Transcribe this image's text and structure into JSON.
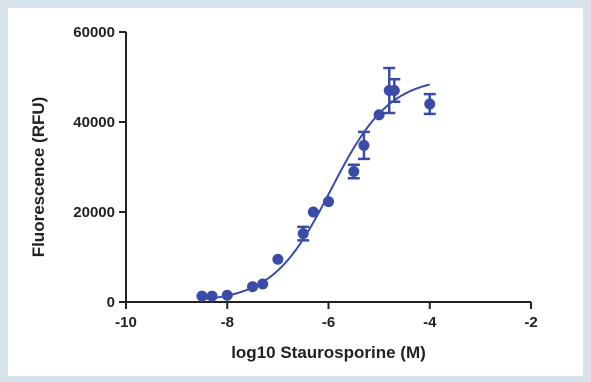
{
  "chart_data": {
    "type": "scatter",
    "title": "",
    "xlabel": "log10 Staurosporine (M)",
    "ylabel": "Fluorescence (RFU)",
    "xlim": [
      -10,
      -2
    ],
    "ylim": [
      0,
      60000
    ],
    "x_ticks": [
      -10,
      -8,
      -6,
      -4,
      -2
    ],
    "y_ticks": [
      0,
      20000,
      40000,
      60000
    ],
    "x_tick_labels": [
      "-10",
      "-8",
      "-6",
      "-4",
      "-2"
    ],
    "y_tick_labels": [
      "0",
      "20000",
      "40000",
      "60000"
    ],
    "grid": false,
    "legend": "none",
    "color": "#3b4ca8",
    "points": [
      {
        "x": -8.5,
        "y": 1300,
        "err": 0
      },
      {
        "x": -8.3,
        "y": 1300,
        "err": 0
      },
      {
        "x": -8.0,
        "y": 1500,
        "err": 0
      },
      {
        "x": -7.5,
        "y": 3400,
        "err": 0
      },
      {
        "x": -7.3,
        "y": 4000,
        "err": 0
      },
      {
        "x": -7.0,
        "y": 9500,
        "err": 0
      },
      {
        "x": -6.5,
        "y": 15200,
        "err": 1500
      },
      {
        "x": -6.3,
        "y": 20000,
        "err": 0
      },
      {
        "x": -6.0,
        "y": 22300,
        "err": 0
      },
      {
        "x": -5.5,
        "y": 29000,
        "err": 1500
      },
      {
        "x": -5.3,
        "y": 34800,
        "err": 3000
      },
      {
        "x": -5.0,
        "y": 41600,
        "err": 0
      },
      {
        "x": -4.8,
        "y": 47000,
        "err": 5000
      },
      {
        "x": -4.7,
        "y": 47000,
        "err": 2500
      },
      {
        "x": -4.0,
        "y": 44000,
        "err": 2200
      }
    ],
    "fit": {
      "type": "sigmoid",
      "bottom": 0,
      "top": 50000,
      "logEC50": -5.95,
      "hill": 0.75,
      "x_range": [
        -8.5,
        -4.0
      ]
    }
  }
}
